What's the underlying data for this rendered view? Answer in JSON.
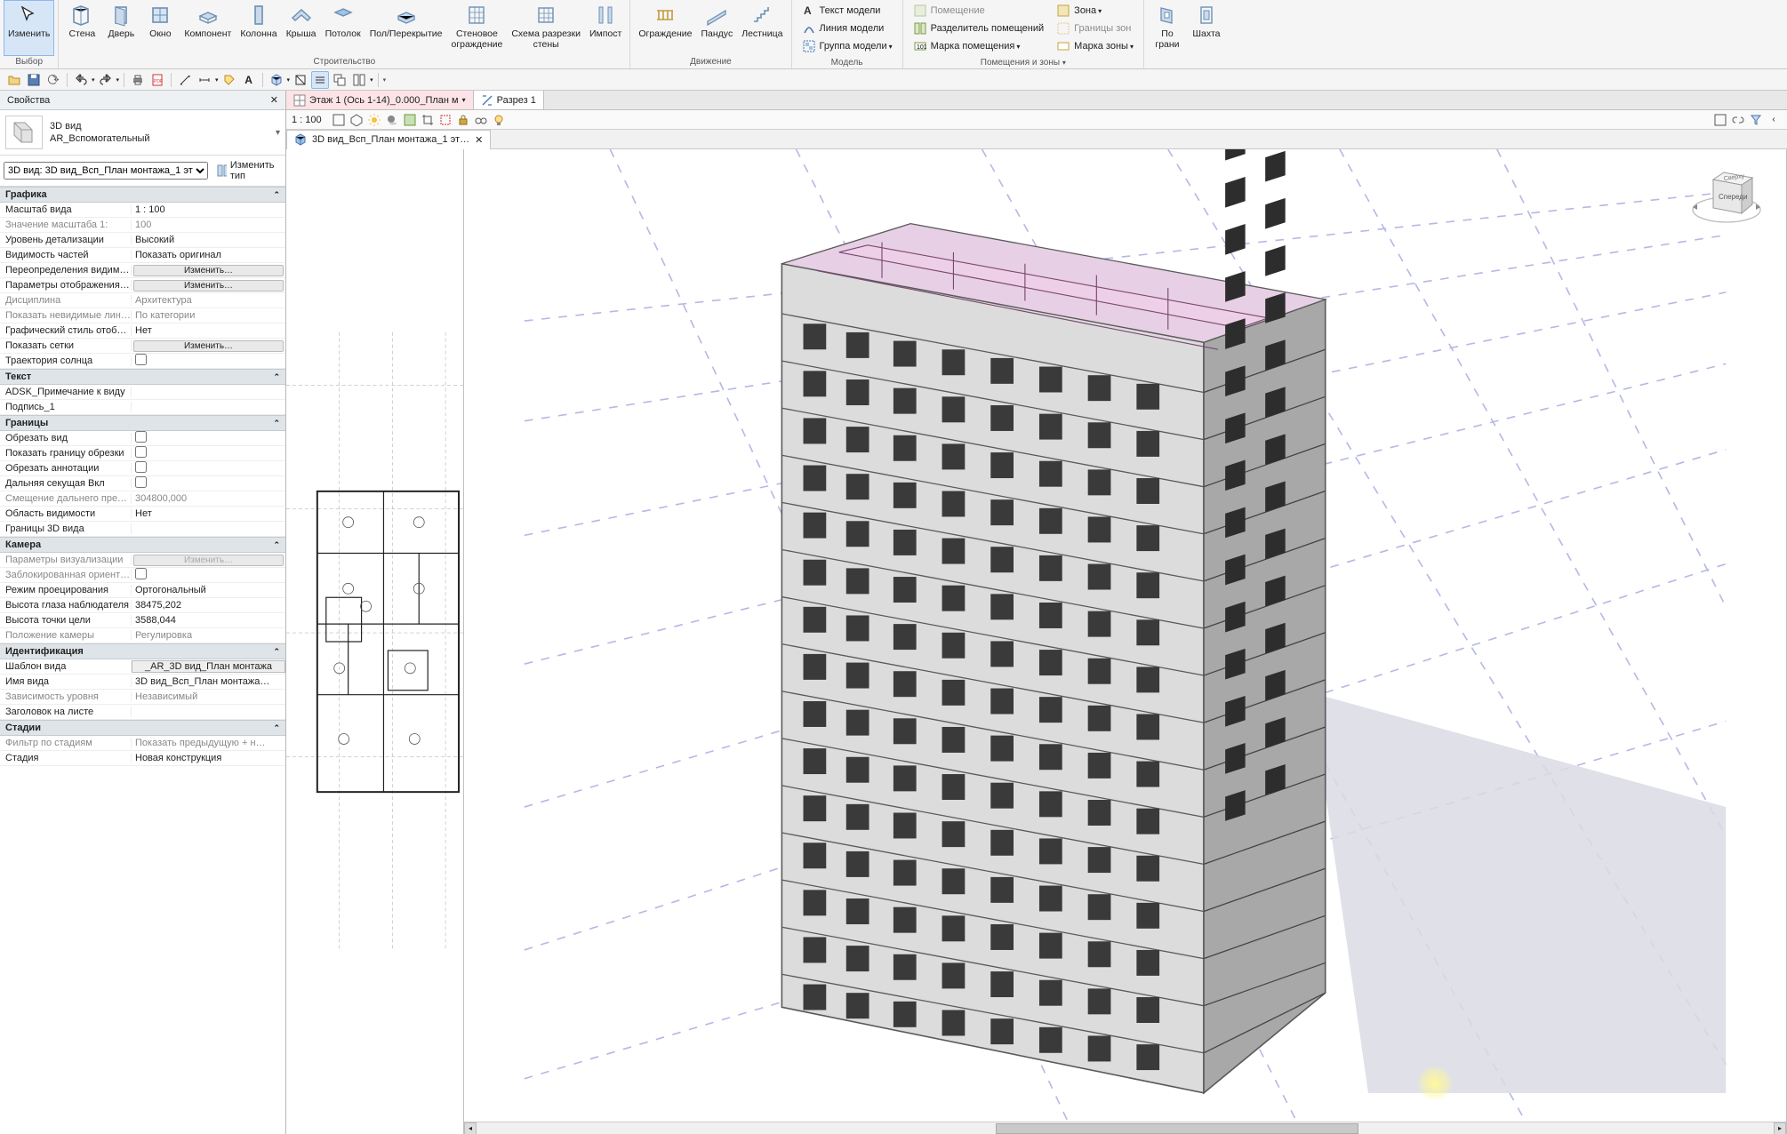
{
  "ribbon": {
    "select_group_label": "Выбор",
    "modify": "Изменить",
    "build_group_label": "Строительство",
    "wall": "Стена",
    "door": "Дверь",
    "window": "Окно",
    "component": "Компонент",
    "column": "Колонна",
    "roof": "Крыша",
    "ceiling": "Потолок",
    "floor": "Пол/Перекрытие",
    "curtain_wall": "Стеновое\nограждение",
    "curtain_grid": "Схема разрезки\nстены",
    "mullion": "Импост",
    "motion_group_label": "Движение",
    "railing": "Ограждение",
    "ramp": "Пандус",
    "stair": "Лестница",
    "model_group_label": "Модель",
    "model_text": "Текст модели",
    "model_line": "Линия модели",
    "model_group": "Группа модели",
    "room_zone_group_label": "Помещения и зоны",
    "room": "Помещение",
    "room_sep": "Разделитель помещений",
    "room_tag": "Марка помещения",
    "zone": "Зона",
    "zone_bound": "Границы зон",
    "zone_tag": "Марка зоны",
    "by_face": "По\nграни",
    "shaft": "Шахта"
  },
  "qat": {
    "open": "open",
    "save": "save"
  },
  "props": {
    "title": "Свойства",
    "type_name": "3D вид",
    "type_family": "AR_Вспомогательный",
    "view_selector": "3D вид: 3D вид_Всп_План монтажа_1 эт",
    "edit_type": "Изменить тип",
    "cats": [
      {
        "name": "Графика",
        "rows": [
          {
            "k": "Масштаб вида",
            "v": "1 : 100"
          },
          {
            "k": "Значение масштаба   1:",
            "v": "100",
            "disabled": true
          },
          {
            "k": "Уровень детализации",
            "v": "Высокий"
          },
          {
            "k": "Видимость частей",
            "v": "Показать оригинал"
          },
          {
            "k": "Переопределения видим…",
            "btn": "Изменить…"
          },
          {
            "k": "Параметры отображения…",
            "btn": "Изменить…"
          },
          {
            "k": "Дисциплина",
            "v": "Архитектура",
            "disabled": true
          },
          {
            "k": "Показать невидимые лин…",
            "v": "По категории",
            "disabled": true
          },
          {
            "k": "Графический стиль отоб…",
            "v": "Нет"
          },
          {
            "k": "Показать сетки",
            "btn": "Изменить…"
          },
          {
            "k": "Траектория солнца",
            "check": false
          }
        ]
      },
      {
        "name": "Текст",
        "rows": [
          {
            "k": "ADSK_Примечание к виду",
            "v": ""
          },
          {
            "k": "Подпись_1",
            "v": ""
          }
        ]
      },
      {
        "name": "Границы",
        "rows": [
          {
            "k": "Обрезать вид",
            "check": false
          },
          {
            "k": "Показать границу обрезки",
            "check": false
          },
          {
            "k": "Обрезать аннотации",
            "check": false
          },
          {
            "k": "Дальняя секущая Вкл",
            "check": false
          },
          {
            "k": "Смещение дальнего пред…",
            "v": "304800,000",
            "disabled": true
          },
          {
            "k": "Область видимости",
            "v": "Нет"
          },
          {
            "k": "Границы 3D вида",
            "v": " "
          }
        ]
      },
      {
        "name": "Камера",
        "rows": [
          {
            "k": "Параметры визуализации",
            "btn": "Изменить…",
            "disabled": true
          },
          {
            "k": "Заблокированная ориент…",
            "check": false,
            "disabled": true
          },
          {
            "k": "Режим проецирования",
            "v": "Ортогональный"
          },
          {
            "k": "Высота глаза наблюдателя",
            "v": "38475,202"
          },
          {
            "k": "Высота точки цели",
            "v": "3588,044"
          },
          {
            "k": "Положение камеры",
            "v": "Регулировка",
            "disabled": true
          }
        ]
      },
      {
        "name": "Идентификация",
        "rows": [
          {
            "k": "Шаблон вида",
            "v": "_AR_3D вид_План монтажа",
            "boxed": true
          },
          {
            "k": "Имя вида",
            "v": "3D вид_Всп_План монтажа…"
          },
          {
            "k": "Зависимость уровня",
            "v": "Независимый",
            "disabled": true
          },
          {
            "k": "Заголовок на листе",
            "v": ""
          }
        ]
      },
      {
        "name": "Стадии",
        "rows": [
          {
            "k": "Фильтр по стадиям",
            "v": "Показать предыдущую + н…",
            "disabled": true
          },
          {
            "k": "Стадия",
            "v": "Новая конструкция"
          }
        ]
      }
    ]
  },
  "tabs": {
    "plan_tab": "Этаж 1 (Ось 1-14)_0.000_План м",
    "section_tab": "Разрез 1",
    "subtab_3d": "3D вид_Всп_План монтажа_1 эт…"
  },
  "viewbar": {
    "scale": "1 : 100"
  },
  "viewcube": {
    "top": "Сверху",
    "front": "Спереди"
  },
  "colors": {
    "accent": "#3a7bc8",
    "pink": "#fbe3e7",
    "building_face": "#d4d4d4",
    "building_side": "#a9a9a9",
    "building_interior": "#e7b6de",
    "grid": "#b5b8e5",
    "shadow": "#d9dbe4"
  }
}
